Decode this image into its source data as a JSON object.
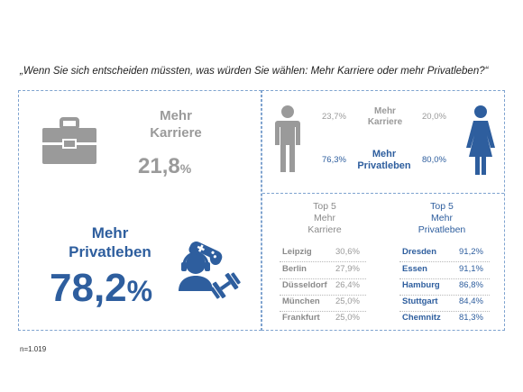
{
  "question": "„Wenn Sie sich entscheiden müssten, was würden Sie wählen: Mehr Karriere oder mehr Privatleben?“",
  "note": "n=1.019",
  "colors": {
    "grey": "#9a9a9a",
    "blue": "#2e5e9e",
    "frame": "#7fa3cf"
  },
  "left": {
    "karriere_label_1": "Mehr",
    "karriere_label_2": "Karriere",
    "karriere_value": "21,8",
    "karriere_pct": "%",
    "privat_label_1": "Mehr",
    "privat_label_2": "Privatleben",
    "privat_value": "78,2",
    "privat_pct": "%",
    "icons": [
      "toolbox-icon",
      "gamer-headset-icon",
      "gamepad-icon",
      "dumbbell-icon"
    ]
  },
  "gender": {
    "karriere_label_1": "Mehr",
    "karriere_label_2": "Karriere",
    "privat_label_1": "Mehr",
    "privat_label_2": "Privatleben",
    "male_karriere": "23,7%",
    "male_privat": "76,3%",
    "female_karriere": "20,0%",
    "female_privat": "80,0%",
    "icons": [
      "male-icon",
      "female-icon"
    ]
  },
  "top5": {
    "karriere_title_1": "Top 5",
    "karriere_title_2": "Mehr",
    "karriere_title_3": "Karriere",
    "privat_title_1": "Top 5",
    "privat_title_2": "Mehr",
    "privat_title_3": "Privatleben",
    "karriere_rows": [
      {
        "city": "Leipzig",
        "value": "30,6%"
      },
      {
        "city": "Berlin",
        "value": "27,9%"
      },
      {
        "city": "Düsseldorf",
        "value": "26,4%"
      },
      {
        "city": "München",
        "value": "25,0%"
      },
      {
        "city": "Frankfurt",
        "value": "25,0%"
      }
    ],
    "privat_rows": [
      {
        "city": "Dresden",
        "value": "91,2%"
      },
      {
        "city": "Essen",
        "value": "91,1%"
      },
      {
        "city": "Hamburg",
        "value": "86,8%"
      },
      {
        "city": "Stuttgart",
        "value": "84,4%"
      },
      {
        "city": "Chemnitz",
        "value": "81,3%"
      }
    ]
  },
  "chart_data": {
    "type": "table",
    "overall": [
      {
        "category": "Mehr Karriere",
        "value": 21.8
      },
      {
        "category": "Mehr Privatleben",
        "value": 78.2
      }
    ],
    "by_gender": {
      "categories": [
        "Mehr Karriere",
        "Mehr Privatleben"
      ],
      "series": [
        {
          "values": [
            23.7,
            76.3
          ]
        },
        {
          "values": [
            20.0,
            80.0
          ]
        }
      ]
    },
    "top5_karriere": {
      "categories": [
        "Leipzig",
        "Berlin",
        "Düsseldorf",
        "München",
        "Frankfurt"
      ],
      "values": [
        30.6,
        27.9,
        26.4,
        25.0,
        25.0
      ]
    },
    "top5_privatleben": {
      "categories": [
        "Dresden",
        "Essen",
        "Hamburg",
        "Stuttgart",
        "Chemnitz"
      ],
      "values": [
        91.2,
        91.1,
        86.8,
        84.4,
        81.3
      ]
    }
  }
}
